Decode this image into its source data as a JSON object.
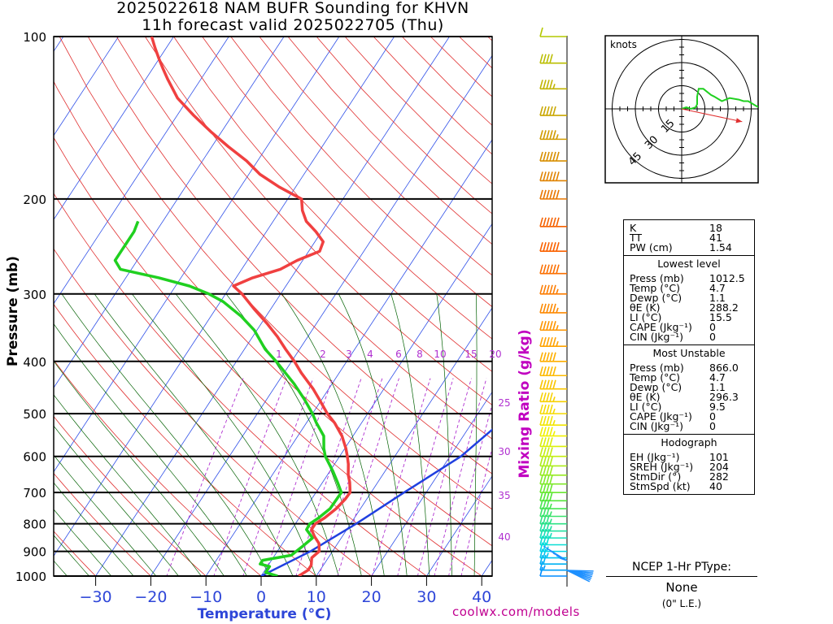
{
  "title": {
    "line1": "2025022618 NAM BUFR Sounding for KHVN",
    "line2": "11h forecast valid 2025022705 (Thu)"
  },
  "axes": {
    "ylabel": "Pressure (mb)",
    "xlabel": "Temperature (°C)",
    "mixing_label": "Mixing Ratio (g/kg)",
    "pressure_levels": [
      100,
      200,
      300,
      400,
      500,
      600,
      700,
      800,
      900,
      1000
    ],
    "pressure_labels": [
      "100",
      "200",
      "300",
      "400",
      "500",
      "600",
      "700",
      "800",
      "900",
      "1000"
    ],
    "temp_ticks": [
      -30,
      -20,
      -10,
      0,
      10,
      20,
      30,
      40
    ],
    "temp_labels": [
      "−30",
      "−20",
      "−10",
      "0",
      "10",
      "20",
      "30",
      "40"
    ],
    "mixing_labels_top": [
      "1",
      "2",
      "3",
      "4",
      "6",
      "8",
      "10",
      "15",
      "20"
    ],
    "mixing_labels_side": [
      "25",
      "30",
      "35",
      "40"
    ]
  },
  "colors": {
    "temperature": "#f04040",
    "dewpoint": "#20d020",
    "parcel": "#2040e0",
    "isotherm": "#3050e8",
    "dry_adiabat": "#e03030",
    "moist_adiabat": "#006000",
    "mixing": "#b030d0"
  },
  "chart_data": {
    "type": "line",
    "title": "2025022618 NAM BUFR Sounding for KHVN",
    "xlabel": "Temperature (°C)",
    "ylabel": "Pressure (mb)",
    "y_scale": "log",
    "ylim": [
      1000,
      100
    ],
    "xlim_at_1000mb": [
      -40,
      42
    ],
    "series": [
      {
        "name": "Temperature",
        "points": [
          [
            1000,
            6.8
          ],
          [
            975,
            7.8
          ],
          [
            955,
            7.8
          ],
          [
            925,
            7.0
          ],
          [
            900,
            7.6
          ],
          [
            870,
            6.6
          ],
          [
            845,
            5.0
          ],
          [
            820,
            3.6
          ],
          [
            800,
            3.6
          ],
          [
            780,
            4.6
          ],
          [
            750,
            5.6
          ],
          [
            720,
            6.1
          ],
          [
            700,
            6.2
          ],
          [
            670,
            4.9
          ],
          [
            650,
            3.8
          ],
          [
            620,
            2.5
          ],
          [
            600,
            1.4
          ],
          [
            580,
            0.2
          ],
          [
            550,
            -2.0
          ],
          [
            520,
            -4.9
          ],
          [
            500,
            -7.3
          ],
          [
            470,
            -10.5
          ],
          [
            450,
            -12.8
          ],
          [
            420,
            -16.9
          ],
          [
            400,
            -19.5
          ],
          [
            380,
            -22.5
          ],
          [
            360,
            -25.5
          ],
          [
            340,
            -29.0
          ],
          [
            320,
            -33.0
          ],
          [
            300,
            -37.0
          ],
          [
            290,
            -39.5
          ],
          [
            280,
            -37.0
          ],
          [
            270,
            -33.0
          ],
          [
            260,
            -31.0
          ],
          [
            250,
            -28.0
          ],
          [
            240,
            -28.5
          ],
          [
            230,
            -31.0
          ],
          [
            220,
            -34.0
          ],
          [
            210,
            -36.0
          ],
          [
            200,
            -37.5
          ],
          [
            190,
            -43.0
          ],
          [
            180,
            -48.0
          ],
          [
            170,
            -52.0
          ],
          [
            160,
            -57.0
          ],
          [
            150,
            -62.0
          ],
          [
            140,
            -67.0
          ],
          [
            130,
            -72.0
          ],
          [
            120,
            -76.0
          ],
          [
            115,
            -78.0
          ],
          [
            110,
            -80.0
          ],
          [
            105,
            -82.0
          ],
          [
            100,
            -84.0
          ]
        ]
      },
      {
        "name": "Dewpoint",
        "points": [
          [
            1000,
            3.0
          ],
          [
            985,
            0.4
          ],
          [
            960,
            0.4
          ],
          [
            950,
            -1.6
          ],
          [
            935,
            -1.6
          ],
          [
            915,
            3.0
          ],
          [
            880,
            4.0
          ],
          [
            850,
            4.8
          ],
          [
            820,
            2.7
          ],
          [
            800,
            2.6
          ],
          [
            780,
            3.5
          ],
          [
            750,
            4.5
          ],
          [
            700,
            4.6
          ],
          [
            670,
            2.7
          ],
          [
            640,
            0.6
          ],
          [
            600,
            -2.6
          ],
          [
            580,
            -3.8
          ],
          [
            550,
            -5.3
          ],
          [
            520,
            -8.2
          ],
          [
            500,
            -10.0
          ],
          [
            470,
            -13.2
          ],
          [
            440,
            -16.9
          ],
          [
            400,
            -22.8
          ],
          [
            380,
            -26.2
          ],
          [
            350,
            -30.5
          ],
          [
            330,
            -34.5
          ],
          [
            310,
            -39.5
          ],
          [
            300,
            -43.0
          ],
          [
            290,
            -47.5
          ],
          [
            280,
            -54.0
          ],
          [
            270,
            -62.0
          ],
          [
            260,
            -64.0
          ],
          [
            250,
            -64.0
          ],
          [
            240,
            -64.0
          ],
          [
            230,
            -64.0
          ],
          [
            220,
            -64.5
          ]
        ]
      },
      {
        "name": "Parcel",
        "points": [
          [
            1000,
            0.0
          ],
          [
            900,
            6.0
          ],
          [
            800,
            11.0
          ],
          [
            700,
            16.0
          ],
          [
            600,
            22.0
          ],
          [
            500,
            26.0
          ],
          [
            400,
            31.5
          ],
          [
            300,
            39.0
          ],
          [
            270,
            41.0
          ]
        ]
      }
    ],
    "wind_barbs_kt": [
      [
        1000,
        10
      ],
      [
        975,
        15
      ],
      [
        950,
        20
      ],
      [
        925,
        25
      ],
      [
        900,
        25
      ],
      [
        875,
        30
      ],
      [
        850,
        35
      ],
      [
        825,
        35
      ],
      [
        800,
        35
      ],
      [
        775,
        35
      ],
      [
        750,
        35
      ],
      [
        725,
        40
      ],
      [
        700,
        40
      ],
      [
        675,
        40
      ],
      [
        650,
        40
      ],
      [
        625,
        40
      ],
      [
        600,
        40
      ],
      [
        575,
        40
      ],
      [
        550,
        45
      ],
      [
        525,
        45
      ],
      [
        500,
        45
      ],
      [
        475,
        45
      ],
      [
        450,
        50
      ],
      [
        425,
        50
      ],
      [
        400,
        50
      ],
      [
        375,
        55
      ],
      [
        350,
        55
      ],
      [
        325,
        55
      ],
      [
        300,
        55
      ],
      [
        275,
        60
      ],
      [
        250,
        60
      ],
      [
        225,
        60
      ],
      [
        200,
        60
      ],
      [
        185,
        60
      ],
      [
        170,
        60
      ],
      [
        155,
        55
      ],
      [
        140,
        50
      ],
      [
        125,
        45
      ],
      [
        112,
        40
      ],
      [
        100,
        10
      ]
    ],
    "hodograph": {
      "unit_label": "knots",
      "ring_labels": [
        "15",
        "30",
        "45"
      ],
      "points": [
        [
          0,
          0
        ],
        [
          3,
          1
        ],
        [
          6,
          0
        ],
        [
          9,
          1
        ],
        [
          10,
          3
        ],
        [
          10,
          8
        ],
        [
          11,
          13
        ],
        [
          14,
          13
        ],
        [
          19,
          9
        ],
        [
          21,
          8
        ],
        [
          26,
          5
        ],
        [
          31,
          7
        ],
        [
          37,
          6
        ],
        [
          40,
          5
        ],
        [
          43,
          5
        ],
        [
          48,
          2
        ],
        [
          50,
          1
        ]
      ],
      "storm_motion": {
        "dir_deg": 282,
        "speed_kt": 40
      }
    }
  },
  "indices": {
    "k": {
      "label": "K",
      "value": "18"
    },
    "tt": {
      "label": "TT",
      "value": "41"
    },
    "pw": {
      "label": "PW (cm)",
      "value": "1.54"
    },
    "lowest": {
      "title": "Lowest level",
      "press": {
        "label": "Press (mb)",
        "value": "1012.5"
      },
      "temp": {
        "label": "Temp (°C)",
        "value": "4.7"
      },
      "dewp": {
        "label": "Dewp (°C)",
        "value": "1.1"
      },
      "theta": {
        "label": "θE (K)",
        "value": "288.2"
      },
      "li": {
        "label": "LI (°C)",
        "value": "15.5"
      },
      "cape": {
        "label": "CAPE (Jkg⁻¹)",
        "value": "0"
      },
      "cin": {
        "label": "CIN (Jkg⁻¹)",
        "value": "0"
      }
    },
    "unstable": {
      "title": "Most Unstable",
      "press": {
        "label": "Press (mb)",
        "value": "866.0"
      },
      "temp": {
        "label": "Temp (°C)",
        "value": "4.7"
      },
      "dewp": {
        "label": "Dewp (°C)",
        "value": "1.1"
      },
      "theta": {
        "label": "θE (K)",
        "value": "296.3"
      },
      "li": {
        "label": "LI (°C)",
        "value": "9.5"
      },
      "cape": {
        "label": "CAPE (Jkg⁻¹)",
        "value": "0"
      },
      "cin": {
        "label": "CIN (Jkg⁻¹)",
        "value": "0"
      }
    },
    "hodo": {
      "title": "Hodograph",
      "eh": {
        "label": "EH (Jkg⁻¹)",
        "value": "101"
      },
      "sreh": {
        "label": "SREH (Jkg⁻¹)",
        "value": "204"
      },
      "stmdir": {
        "label": "StmDir (°)",
        "value": "282"
      },
      "stmspd": {
        "label": "StmSpd (kt)",
        "value": "40"
      }
    }
  },
  "ptype": {
    "title": "NCEP 1-Hr PType:",
    "value": "None",
    "sub": "(0\" L.E.)"
  },
  "footer": {
    "site": "coolwx.com/models"
  }
}
